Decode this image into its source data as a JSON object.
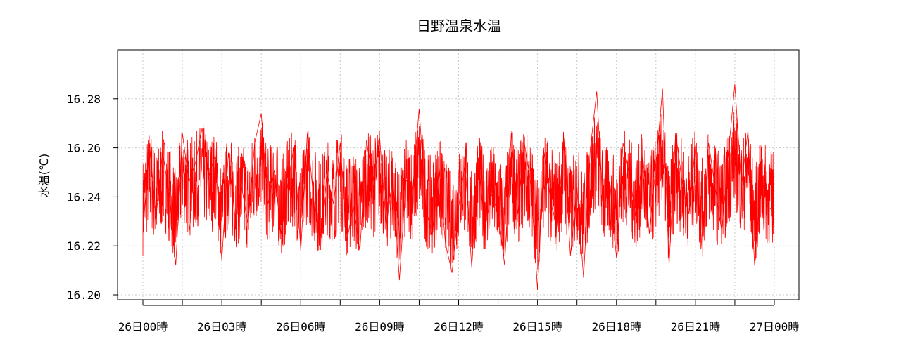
{
  "chart_data": {
    "type": "line",
    "title": "日野温泉水温",
    "ylabel": "水温(℃)",
    "xlabel": "",
    "ylim": [
      16.198,
      16.3
    ],
    "grid": true,
    "line_color": "#ff0000",
    "y_ticks": [
      {
        "value": 16.2,
        "label": "16.20"
      },
      {
        "value": 16.22,
        "label": "16.22"
      },
      {
        "value": 16.24,
        "label": "16.24"
      },
      {
        "value": 16.26,
        "label": "16.26"
      },
      {
        "value": 16.28,
        "label": "16.28"
      }
    ],
    "x_range": [
      "26日00時",
      "27日00時"
    ],
    "x_major_ticks": [
      {
        "hour": 0,
        "label": "26日00時"
      },
      {
        "hour": 3,
        "label": "26日03時"
      },
      {
        "hour": 6,
        "label": "26日06時"
      },
      {
        "hour": 9,
        "label": "26日09時"
      },
      {
        "hour": 12,
        "label": "26日12時"
      },
      {
        "hour": 15,
        "label": "26日15時"
      },
      {
        "hour": 18,
        "label": "26日18時"
      },
      {
        "hour": 21,
        "label": "26日21時"
      },
      {
        "hour": 24,
        "label": "27日00時"
      }
    ],
    "x_minor_ticks_hours": [
      1.5,
      4.5,
      7.5,
      10.5,
      13.5,
      16.5,
      19.5,
      22.5
    ],
    "series": [
      {
        "x_hours": [
          0,
          0.25,
          0.5,
          0.75,
          1,
          1.25,
          1.5,
          1.75,
          2,
          2.25,
          2.5,
          2.75,
          3,
          3.25,
          3.5,
          3.75,
          4,
          4.25,
          4.5,
          4.75,
          5,
          5.25,
          5.5,
          5.75,
          6,
          6.25,
          6.5,
          6.75,
          7,
          7.25,
          7.5,
          7.75,
          8,
          8.25,
          8.5,
          8.75,
          9,
          9.25,
          9.5,
          9.75,
          10,
          10.25,
          10.5,
          10.75,
          11,
          11.25,
          11.5,
          11.75,
          12,
          12.25,
          12.5,
          12.75,
          13,
          13.25,
          13.5,
          13.75,
          14,
          14.25,
          14.5,
          14.75,
          15,
          15.25,
          15.5,
          15.75,
          16,
          16.25,
          16.5,
          16.75,
          17,
          17.25,
          17.5,
          17.75,
          18,
          18.25,
          18.5,
          18.75,
          19,
          19.25,
          19.5,
          19.75,
          20,
          20.25,
          20.5,
          20.75,
          21,
          21.25,
          21.5,
          21.75,
          22,
          22.25,
          22.5,
          22.75,
          23,
          23.25,
          23.5,
          23.75,
          24
        ],
        "values": [
          16.225,
          16.262,
          16.232,
          16.258,
          16.241,
          16.212,
          16.266,
          16.246,
          16.254,
          16.268,
          16.248,
          16.257,
          16.214,
          16.258,
          16.232,
          16.244,
          16.229,
          16.262,
          16.274,
          16.237,
          16.251,
          16.225,
          16.245,
          16.261,
          16.218,
          16.266,
          16.238,
          16.224,
          16.249,
          16.237,
          16.262,
          16.222,
          16.236,
          16.218,
          16.263,
          16.246,
          16.264,
          16.228,
          16.248,
          16.206,
          16.247,
          16.242,
          16.276,
          16.236,
          16.224,
          16.252,
          16.221,
          16.209,
          16.236,
          16.253,
          16.211,
          16.256,
          16.227,
          16.241,
          16.234,
          16.212,
          16.266,
          16.233,
          16.262,
          16.245,
          16.202,
          16.258,
          16.238,
          16.227,
          16.264,
          16.216,
          16.244,
          16.207,
          16.259,
          16.283,
          16.234,
          16.246,
          16.215,
          16.262,
          16.249,
          16.231,
          16.257,
          16.225,
          16.253,
          16.284,
          16.212,
          16.266,
          16.246,
          16.233,
          16.261,
          16.219,
          16.262,
          16.244,
          16.226,
          16.257,
          16.286,
          16.245,
          16.267,
          16.212,
          16.249,
          16.236,
          16.234
        ]
      }
    ]
  }
}
